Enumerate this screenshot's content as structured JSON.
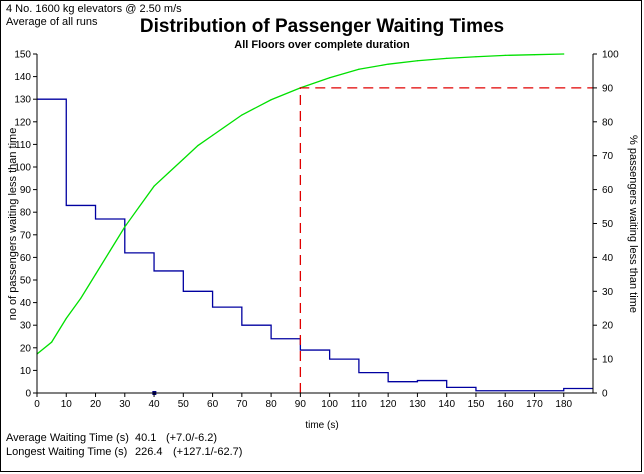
{
  "header": {
    "config_line": "4 No. 1600 kg elevators @ 2.50 m/s",
    "runs_line": "Average of all runs"
  },
  "colors": {
    "count_series": "#0000a0",
    "percent_series": "#00e000",
    "reference": "#e00000",
    "axis": "#000000"
  },
  "stats": {
    "avg_label": "Average Waiting Time (s)",
    "avg_value": "40.1",
    "avg_range": "(+7.0/-6.2)",
    "max_label": "Longest Waiting Time (s)",
    "max_value": "226.4",
    "max_range": "(+127.1/-62.7)"
  },
  "chart_data": {
    "type": "line",
    "title": "Distribution of Passenger Waiting Times",
    "subtitle": "All Floors over complete duration",
    "xlabel": "time (s)",
    "ylabel": "no of passengers waiting less than time",
    "y2label": "% passengers waiting less than time",
    "xlim": [
      0,
      190
    ],
    "ylim": [
      0,
      150
    ],
    "y2lim": [
      0,
      100
    ],
    "x_ticks": [
      0,
      10,
      20,
      30,
      40,
      50,
      60,
      70,
      80,
      90,
      100,
      110,
      120,
      130,
      140,
      150,
      160,
      170,
      180
    ],
    "y_ticks": [
      0,
      10,
      20,
      30,
      40,
      50,
      60,
      70,
      80,
      90,
      100,
      110,
      120,
      130,
      140,
      150
    ],
    "y2_ticks": [
      0,
      10,
      20,
      30,
      40,
      50,
      60,
      70,
      80,
      90,
      100
    ],
    "series": [
      {
        "axis": "left",
        "style": "step",
        "bins": [
          {
            "x0": 0,
            "x1": 10,
            "y": 130
          },
          {
            "x0": 10,
            "x1": 20,
            "y": 83
          },
          {
            "x0": 20,
            "x1": 30,
            "y": 77
          },
          {
            "x0": 30,
            "x1": 40,
            "y": 62
          },
          {
            "x0": 40,
            "x1": 50,
            "y": 54
          },
          {
            "x0": 50,
            "x1": 60,
            "y": 45
          },
          {
            "x0": 60,
            "x1": 70,
            "y": 38
          },
          {
            "x0": 70,
            "x1": 80,
            "y": 30
          },
          {
            "x0": 80,
            "x1": 90,
            "y": 24
          },
          {
            "x0": 90,
            "x1": 100,
            "y": 19
          },
          {
            "x0": 100,
            "x1": 110,
            "y": 15
          },
          {
            "x0": 110,
            "x1": 120,
            "y": 9
          },
          {
            "x0": 120,
            "x1": 130,
            "y": 5
          },
          {
            "x0": 130,
            "x1": 140,
            "y": 5.5
          },
          {
            "x0": 140,
            "x1": 150,
            "y": 2.5
          },
          {
            "x0": 150,
            "x1": 180,
            "y": 1
          },
          {
            "x0": 180,
            "x1": 190,
            "y": 2
          }
        ]
      },
      {
        "axis": "right",
        "style": "line",
        "points": [
          [
            0,
            11.5
          ],
          [
            5,
            15
          ],
          [
            10,
            22
          ],
          [
            15,
            28
          ],
          [
            20,
            35
          ],
          [
            25,
            42
          ],
          [
            30,
            49
          ],
          [
            35,
            55
          ],
          [
            40,
            61
          ],
          [
            45,
            65
          ],
          [
            50,
            69
          ],
          [
            55,
            73
          ],
          [
            60,
            76
          ],
          [
            70,
            82
          ],
          [
            80,
            86.5
          ],
          [
            90,
            90
          ],
          [
            100,
            93
          ],
          [
            110,
            95.5
          ],
          [
            120,
            97
          ],
          [
            130,
            98
          ],
          [
            140,
            98.7
          ],
          [
            150,
            99.2
          ],
          [
            160,
            99.6
          ],
          [
            170,
            99.8
          ],
          [
            180,
            100
          ]
        ]
      },
      {
        "axis": "right",
        "style": "dashed",
        "points": [
          [
            90,
            0
          ],
          [
            90,
            90
          ],
          [
            190,
            90
          ]
        ]
      }
    ],
    "markers": [
      {
        "x": 40.1,
        "y": 0
      }
    ]
  }
}
